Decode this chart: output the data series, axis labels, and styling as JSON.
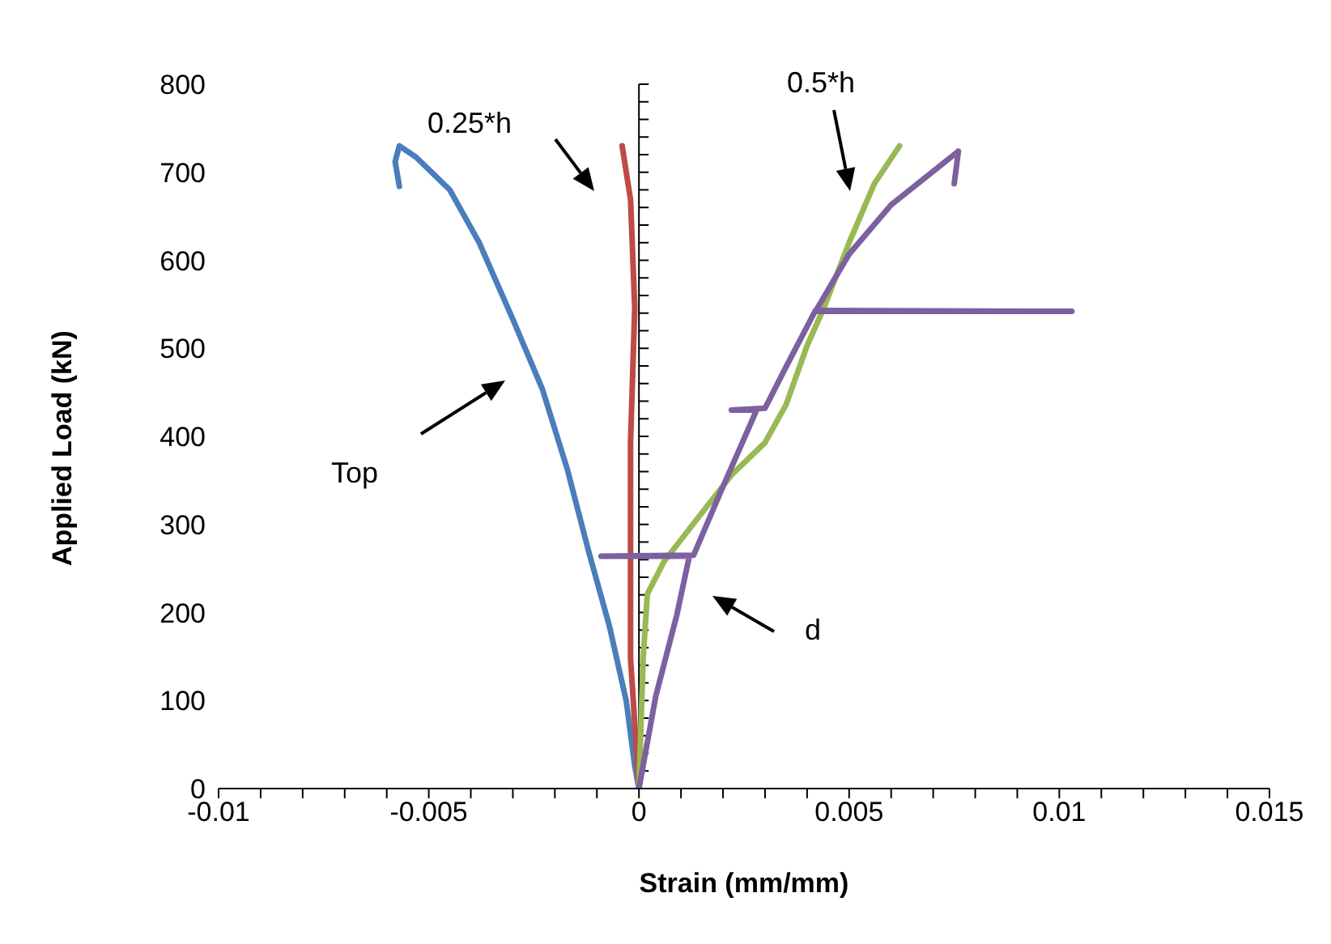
{
  "chart_data": {
    "type": "line",
    "xlabel": "Strain (mm/mm)",
    "ylabel": "Applied Load (kN)",
    "xlim": [
      -0.01,
      0.015
    ],
    "xticks": [
      -0.01,
      {
        "value": -0.009,
        "label": null
      },
      {
        "value": -0.008,
        "label": null
      },
      {
        "value": -0.007,
        "label": null
      },
      {
        "value": -0.006,
        "label": null
      },
      -0.005,
      {
        "value": -0.004,
        "label": null
      },
      {
        "value": -0.003,
        "label": null
      },
      {
        "value": -0.002,
        "label": null
      },
      {
        "value": -0.001,
        "label": null
      },
      0,
      {
        "value": 0.001,
        "label": null
      },
      {
        "value": 0.002,
        "label": null
      },
      {
        "value": 0.003,
        "label": null
      },
      {
        "value": 0.004,
        "label": null
      },
      0.005,
      {
        "value": 0.006,
        "label": null
      },
      {
        "value": 0.007,
        "label": null
      },
      {
        "value": 0.008,
        "label": null
      },
      {
        "value": 0.009,
        "label": null
      },
      0.01,
      {
        "value": 0.011,
        "label": null
      },
      {
        "value": 0.012,
        "label": null
      },
      {
        "value": 0.013,
        "label": null
      },
      {
        "value": 0.014,
        "label": null
      },
      0.015
    ],
    "ylim": [
      0,
      800
    ],
    "yticks": [
      0,
      {
        "value": 20,
        "label": null
      },
      {
        "value": 40,
        "label": null
      },
      {
        "value": 60,
        "label": null
      },
      {
        "value": 80,
        "label": null
      },
      100,
      {
        "value": 120,
        "label": null
      },
      {
        "value": 140,
        "label": null
      },
      {
        "value": 160,
        "label": null
      },
      {
        "value": 180,
        "label": null
      },
      200,
      {
        "value": 220,
        "label": null
      },
      {
        "value": 240,
        "label": null
      },
      {
        "value": 260,
        "label": null
      },
      {
        "value": 280,
        "label": null
      },
      300,
      {
        "value": 320,
        "label": null
      },
      {
        "value": 340,
        "label": null
      },
      {
        "value": 360,
        "label": null
      },
      {
        "value": 380,
        "label": null
      },
      400,
      {
        "value": 420,
        "label": null
      },
      {
        "value": 440,
        "label": null
      },
      {
        "value": 460,
        "label": null
      },
      {
        "value": 480,
        "label": null
      },
      500,
      {
        "value": 520,
        "label": null
      },
      {
        "value": 540,
        "label": null
      },
      {
        "value": 560,
        "label": null
      },
      {
        "value": 580,
        "label": null
      },
      600,
      {
        "value": 620,
        "label": null
      },
      {
        "value": 640,
        "label": null
      },
      {
        "value": 660,
        "label": null
      },
      {
        "value": 680,
        "label": null
      },
      700,
      {
        "value": 720,
        "label": null
      },
      {
        "value": 740,
        "label": null
      },
      {
        "value": 760,
        "label": null
      },
      {
        "value": 780,
        "label": null
      },
      800
    ],
    "marker": "none",
    "line_style": "solid",
    "series": [
      {
        "color": "#4a7ebb",
        "x": [
          0,
          -0.0001,
          -0.0003,
          -0.0007,
          -0.0012,
          -0.0017,
          -0.0023,
          -0.003,
          -0.0038,
          -0.0045,
          -0.0053,
          -0.0057,
          -0.0058,
          -0.0057
        ],
        "values": [
          0,
          26,
          99,
          184,
          270,
          362,
          454,
          533,
          620,
          680,
          717,
          730,
          712,
          684
        ]
      },
      {
        "color": "#be4b48",
        "x": [
          0,
          -0.0002,
          -0.0002,
          -0.0002,
          -0.0001,
          -0.0002,
          -0.0004
        ],
        "values": [
          0,
          148,
          270,
          393,
          546,
          669,
          730
        ]
      },
      {
        "color": "#98b954",
        "x": [
          0,
          0.0001,
          0.0002,
          0.0006,
          0.0013,
          0.0022,
          0.003,
          0.0035,
          0.004,
          0.0044,
          0.005,
          0.0056,
          0.0062
        ],
        "values": [
          0,
          148,
          221,
          258,
          301,
          356,
          393,
          436,
          503,
          546,
          620,
          687,
          730
        ]
      },
      {
        "color": "#7d60a0",
        "x": [
          0,
          0.0004,
          0.0009,
          0.0012,
          -0.0009,
          0.0013,
          0.0019,
          0.0028,
          0.0022,
          0.003,
          0.0035,
          0.0042,
          0.0103,
          0.0042,
          0.005,
          0.006,
          0.0076,
          0.0075
        ],
        "values": [
          0,
          105,
          197,
          264,
          264,
          265,
          332,
          430,
          430,
          432,
          479,
          543,
          542,
          542,
          607,
          663,
          724,
          687
        ]
      }
    ],
    "annotations": [
      "0.25*h",
      "Top",
      "0.5*h",
      "d"
    ]
  }
}
